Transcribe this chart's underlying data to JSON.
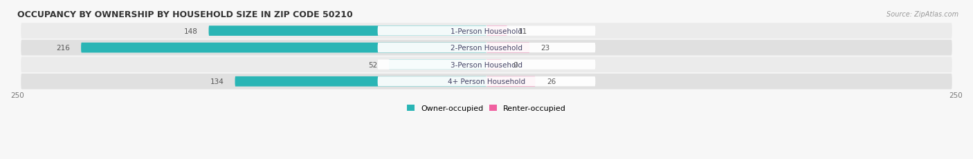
{
  "title": "OCCUPANCY BY OWNERSHIP BY HOUSEHOLD SIZE IN ZIP CODE 50210",
  "source": "Source: ZipAtlas.com",
  "categories": [
    "1-Person Household",
    "2-Person Household",
    "3-Person Household",
    "4+ Person Household"
  ],
  "owner_values": [
    148,
    216,
    52,
    134
  ],
  "renter_values": [
    11,
    23,
    0,
    26
  ],
  "owner_color_dark": "#2ab5b5",
  "owner_color_light": "#7dd4d4",
  "renter_color_dark": "#f060a0",
  "renter_color_light": "#f0a0c0",
  "row_bg_odd": "#ebebeb",
  "row_bg_even": "#e0e0e0",
  "fig_bg": "#f7f7f7",
  "axis_max": 250,
  "bar_height": 0.6,
  "label_fontsize": 7.5,
  "value_fontsize": 7.5,
  "title_fontsize": 9,
  "source_fontsize": 7
}
